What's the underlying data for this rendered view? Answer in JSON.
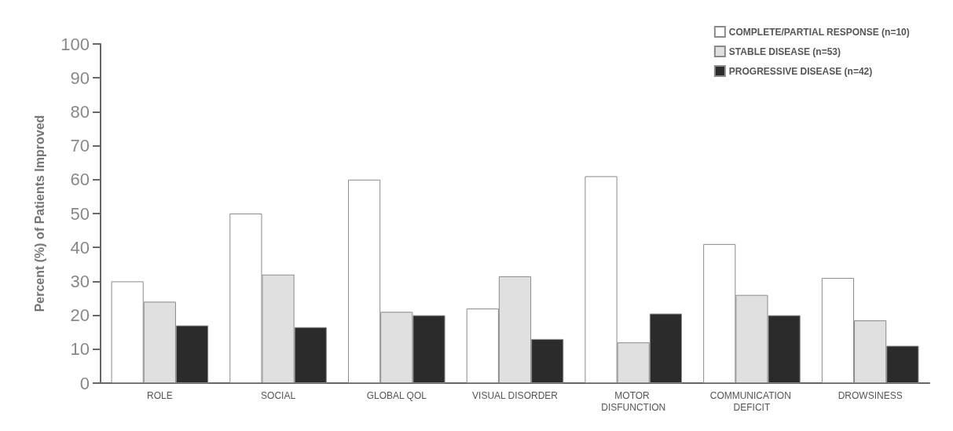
{
  "chart_data": {
    "type": "bar",
    "ylabel": "Percent (%) of Patients Improved",
    "categories": [
      "ROLE",
      "SOCIAL",
      "GLOBAL QOL",
      "VISUAL DISORDER",
      "MOTOR DISFUNCTION",
      "COMMUNICATION DEFICIT",
      "DROWSINESS"
    ],
    "series": [
      {
        "name": "COMPLETE/PARTIAL RESPONSE (n=10)",
        "color": "#ffffff",
        "values": [
          30,
          50,
          60,
          22,
          61,
          41,
          31
        ]
      },
      {
        "name": "STABLE DISEASE (n=53)",
        "color": "#e0e0e0",
        "values": [
          24,
          32,
          21,
          31.5,
          12,
          26,
          18.5
        ]
      },
      {
        "name": "PROGRESSIVE DISEASE (n=42)",
        "color": "#2b2b2b",
        "values": [
          17,
          16.5,
          20,
          13,
          20.5,
          20,
          11
        ]
      }
    ],
    "ylim": [
      0,
      100
    ],
    "yticks": [
      0,
      10,
      20,
      30,
      40,
      50,
      60,
      70,
      80,
      90,
      100
    ],
    "grid": false,
    "legend": "top right"
  }
}
